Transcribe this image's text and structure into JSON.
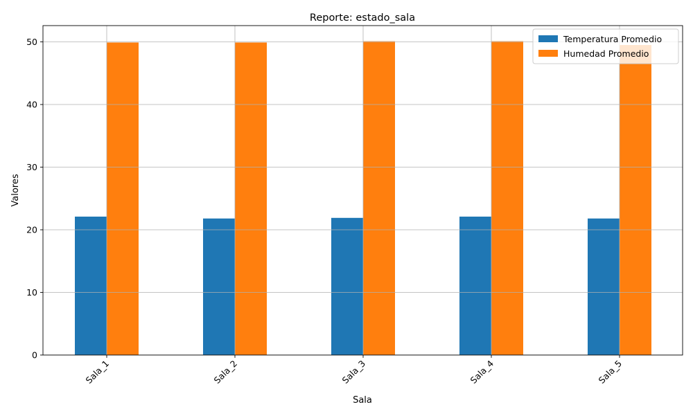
{
  "chart_data": {
    "type": "bar",
    "title": "Reporte: estado_sala",
    "xlabel": "Sala",
    "ylabel": "Valores",
    "categories": [
      "Sala_1",
      "Sala_2",
      "Sala_3",
      "Sala_4",
      "Sala_5"
    ],
    "series": [
      {
        "name": "Temperatura Promedio",
        "color": "#1f77b4",
        "values": [
          22.1,
          21.8,
          21.9,
          22.1,
          21.8
        ]
      },
      {
        "name": "Humedad Promedio",
        "color": "#ff7f0e",
        "values": [
          49.9,
          49.9,
          50.1,
          50.1,
          49.5
        ]
      }
    ],
    "ylim": [
      0,
      52.6
    ],
    "yticks": [
      0,
      10,
      20,
      30,
      40,
      50
    ],
    "grid": true,
    "legend_position": "top-right",
    "xtick_rotation": "45 degrees"
  }
}
